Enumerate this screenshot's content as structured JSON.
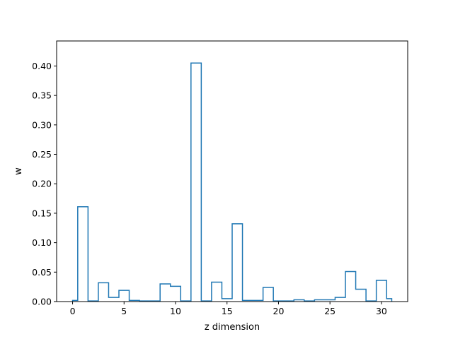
{
  "chart_data": {
    "type": "step",
    "xlabel": "z dimension",
    "ylabel": "w",
    "xlim": [
      -1.55,
      32.55
    ],
    "ylim": [
      0,
      0.4425
    ],
    "xticks": [
      0,
      5,
      10,
      15,
      20,
      25,
      30
    ],
    "xtick_labels": [
      "0",
      "5",
      "10",
      "15",
      "20",
      "25",
      "30"
    ],
    "yticks": [
      0.0,
      0.05,
      0.1,
      0.15,
      0.2,
      0.25,
      0.3,
      0.35,
      0.4
    ],
    "ytick_labels": [
      "0.00",
      "0.05",
      "0.10",
      "0.15",
      "0.20",
      "0.25",
      "0.30",
      "0.35",
      "0.40"
    ],
    "line_color": "#1f77b4",
    "x": [
      0,
      1,
      2,
      3,
      4,
      5,
      6,
      7,
      8,
      9,
      10,
      11,
      12,
      13,
      14,
      15,
      16,
      17,
      18,
      19,
      20,
      21,
      22,
      23,
      24,
      25,
      26,
      27,
      28,
      29,
      30,
      31
    ],
    "values": [
      0.002,
      0.161,
      0.001,
      0.032,
      0.007,
      0.019,
      0.002,
      0.001,
      0.001,
      0.03,
      0.026,
      0.001,
      0.405,
      0.001,
      0.033,
      0.005,
      0.132,
      0.002,
      0.002,
      0.024,
      0.001,
      0.001,
      0.003,
      0.001,
      0.003,
      0.003,
      0.007,
      0.051,
      0.021,
      0.001,
      0.036,
      0.005
    ]
  }
}
